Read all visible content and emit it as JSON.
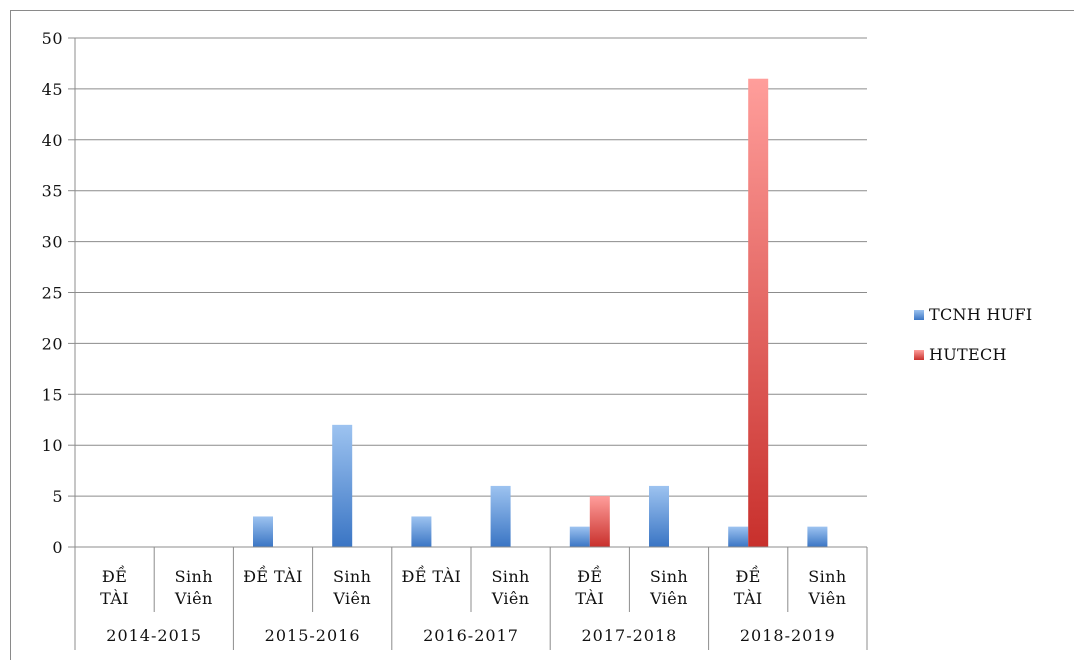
{
  "chart_data": {
    "type": "bar",
    "title": "",
    "xlabel": "",
    "ylabel": "",
    "ylim": [
      0,
      50
    ],
    "yticks": [
      0,
      5,
      10,
      15,
      20,
      25,
      30,
      35,
      40,
      45,
      50
    ],
    "categories": [
      {
        "label": [
          "ĐỀ",
          "TÀI"
        ],
        "group": "2014-2015"
      },
      {
        "label": [
          "Sinh",
          "Viên"
        ],
        "group": "2014-2015"
      },
      {
        "label": [
          "ĐỀ TÀI"
        ],
        "group": "2015-2016"
      },
      {
        "label": [
          "Sinh",
          "Viên"
        ],
        "group": "2015-2016"
      },
      {
        "label": [
          "ĐỀ TÀI"
        ],
        "group": "2016-2017"
      },
      {
        "label": [
          "Sinh",
          "Viên"
        ],
        "group": "2016-2017"
      },
      {
        "label": [
          "ĐỀ",
          "TÀI"
        ],
        "group": "2017-2018"
      },
      {
        "label": [
          "Sinh",
          "Viên"
        ],
        "group": "2017-2018"
      },
      {
        "label": [
          "ĐỀ",
          "TÀI"
        ],
        "group": "2018-2019"
      },
      {
        "label": [
          "Sinh",
          "Viên"
        ],
        "group": "2018-2019"
      }
    ],
    "groups": [
      "2014-2015",
      "2015-2016",
      "2016-2017",
      "2017-2018",
      "2018-2019"
    ],
    "series": [
      {
        "name": "TCNH HUFI",
        "color": "#4f81bd",
        "values": [
          0,
          0,
          3,
          12,
          3,
          6,
          2,
          6,
          2,
          2
        ]
      },
      {
        "name": "HUTECH",
        "color": "#c0504d",
        "values": [
          0,
          0,
          0,
          0,
          0,
          0,
          5,
          0,
          46,
          0
        ]
      }
    ],
    "grid": true,
    "legend_position": "right"
  }
}
